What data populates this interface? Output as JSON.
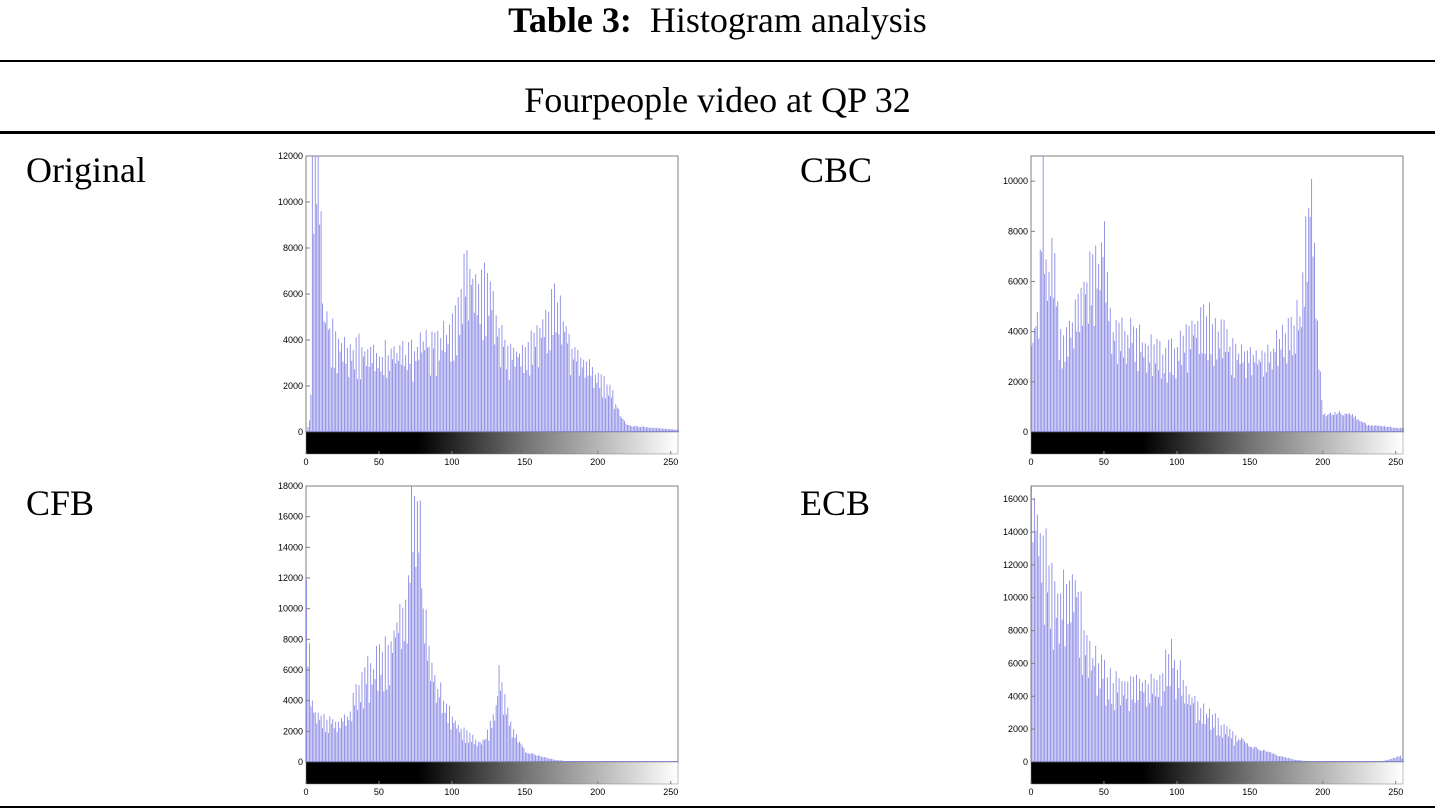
{
  "table": {
    "caption_bold": "Table 3:",
    "caption_text": "Histogram analysis",
    "subtitle": "Fourpeople video at QP 32"
  },
  "panels": {
    "original": {
      "label": "Original"
    },
    "cbc": {
      "label": "CBC"
    },
    "cfb": {
      "label": "CFB"
    },
    "ecb": {
      "label": "ECB"
    }
  },
  "colors": {
    "bars": "#8a8ae6",
    "axes": "#7f7f7f"
  },
  "chart_data": [
    {
      "type": "bar",
      "id": "original",
      "title": "Original",
      "xlim": [
        0,
        255
      ],
      "ylim": [
        0,
        12000
      ],
      "xticks": [
        0,
        50,
        100,
        150,
        200,
        250
      ],
      "yticks": [
        0,
        2000,
        4000,
        6000,
        8000,
        10000,
        12000
      ],
      "colorbar": "grayscale 0-255",
      "profile": [
        [
          0,
          0
        ],
        [
          2,
          500
        ],
        [
          3,
          2200
        ],
        [
          4,
          12000
        ],
        [
          8,
          12000
        ],
        [
          10,
          9600
        ],
        [
          12,
          5400
        ],
        [
          14,
          6000
        ],
        [
          16,
          5100
        ],
        [
          20,
          4400
        ],
        [
          30,
          4200
        ],
        [
          40,
          4000
        ],
        [
          50,
          3800
        ],
        [
          60,
          3900
        ],
        [
          70,
          3800
        ],
        [
          80,
          4300
        ],
        [
          90,
          4400
        ],
        [
          100,
          5000
        ],
        [
          105,
          6300
        ],
        [
          110,
          8700
        ],
        [
          115,
          7300
        ],
        [
          120,
          7000
        ],
        [
          125,
          7600
        ],
        [
          130,
          5000
        ],
        [
          140,
          4000
        ],
        [
          150,
          4000
        ],
        [
          160,
          5200
        ],
        [
          170,
          6500
        ],
        [
          175,
          5800
        ],
        [
          180,
          4500
        ],
        [
          190,
          3300
        ],
        [
          200,
          2700
        ],
        [
          210,
          1800
        ],
        [
          215,
          800
        ],
        [
          220,
          300
        ],
        [
          240,
          180
        ],
        [
          255,
          100
        ]
      ]
    },
    {
      "type": "bar",
      "id": "cbc",
      "title": "CBC",
      "xlim": [
        0,
        255
      ],
      "ylim": [
        0,
        11000
      ],
      "xticks": [
        0,
        50,
        100,
        150,
        200,
        250
      ],
      "yticks": [
        0,
        2000,
        4000,
        6000,
        8000,
        10000
      ],
      "colorbar": "grayscale 0-255",
      "profile": [
        [
          0,
          3800
        ],
        [
          5,
          6000
        ],
        [
          8,
          11000
        ],
        [
          10,
          7600
        ],
        [
          12,
          6500
        ],
        [
          15,
          8000
        ],
        [
          20,
          4000
        ],
        [
          30,
          5200
        ],
        [
          35,
          6400
        ],
        [
          40,
          7000
        ],
        [
          45,
          7500
        ],
        [
          50,
          8600
        ],
        [
          55,
          4300
        ],
        [
          60,
          4500
        ],
        [
          70,
          4400
        ],
        [
          80,
          4000
        ],
        [
          90,
          3400
        ],
        [
          100,
          3800
        ],
        [
          110,
          4500
        ],
        [
          120,
          5000
        ],
        [
          130,
          4600
        ],
        [
          140,
          3400
        ],
        [
          150,
          3500
        ],
        [
          160,
          3200
        ],
        [
          170,
          4300
        ],
        [
          180,
          4800
        ],
        [
          185,
          5400
        ],
        [
          190,
          10300
        ],
        [
          193,
          11000
        ],
        [
          196,
          4600
        ],
        [
          200,
          700
        ],
        [
          210,
          800
        ],
        [
          220,
          700
        ],
        [
          230,
          300
        ],
        [
          255,
          150
        ]
      ]
    },
    {
      "type": "bar",
      "id": "cfb",
      "title": "CFB",
      "xlim": [
        0,
        255
      ],
      "ylim": [
        0,
        18000
      ],
      "xticks": [
        0,
        50,
        100,
        150,
        200,
        250
      ],
      "yticks": [
        0,
        2000,
        4000,
        6000,
        8000,
        10000,
        12000,
        14000,
        16000,
        18000
      ],
      "colorbar": "grayscale 0-255",
      "profile": [
        [
          0,
          11500
        ],
        [
          2,
          7500
        ],
        [
          4,
          4300
        ],
        [
          6,
          3700
        ],
        [
          10,
          3300
        ],
        [
          20,
          2800
        ],
        [
          30,
          3500
        ],
        [
          35,
          5600
        ],
        [
          40,
          6500
        ],
        [
          50,
          7500
        ],
        [
          55,
          8000
        ],
        [
          60,
          9500
        ],
        [
          65,
          10500
        ],
        [
          70,
          13000
        ],
        [
          72,
          18000
        ],
        [
          78,
          18000
        ],
        [
          80,
          11000
        ],
        [
          85,
          7500
        ],
        [
          90,
          5500
        ],
        [
          100,
          3200
        ],
        [
          110,
          2000
        ],
        [
          120,
          1300
        ],
        [
          125,
          2200
        ],
        [
          130,
          4300
        ],
        [
          132,
          6600
        ],
        [
          136,
          5000
        ],
        [
          140,
          2600
        ],
        [
          150,
          700
        ],
        [
          160,
          400
        ],
        [
          170,
          150
        ],
        [
          180,
          50
        ],
        [
          255,
          0
        ]
      ]
    },
    {
      "type": "bar",
      "id": "ecb",
      "title": "ECB",
      "xlim": [
        0,
        255
      ],
      "ylim": [
        0,
        16800
      ],
      "xticks": [
        0,
        50,
        100,
        150,
        200,
        250
      ],
      "yticks": [
        0,
        2000,
        4000,
        6000,
        8000,
        10000,
        12000,
        14000,
        16000
      ],
      "colorbar": "grayscale 0-255",
      "profile": [
        [
          0,
          16800
        ],
        [
          5,
          16800
        ],
        [
          10,
          13800
        ],
        [
          15,
          11000
        ],
        [
          20,
          10800
        ],
        [
          25,
          12600
        ],
        [
          30,
          12900
        ],
        [
          35,
          9200
        ],
        [
          40,
          7500
        ],
        [
          50,
          6000
        ],
        [
          60,
          5300
        ],
        [
          70,
          5400
        ],
        [
          80,
          5200
        ],
        [
          90,
          6000
        ],
        [
          95,
          7900
        ],
        [
          100,
          6500
        ],
        [
          110,
          4300
        ],
        [
          120,
          3400
        ],
        [
          130,
          2600
        ],
        [
          140,
          1700
        ],
        [
          150,
          1000
        ],
        [
          160,
          700
        ],
        [
          170,
          400
        ],
        [
          180,
          150
        ],
        [
          190,
          50
        ],
        [
          240,
          20
        ],
        [
          253,
          400
        ],
        [
          255,
          50
        ]
      ]
    }
  ]
}
